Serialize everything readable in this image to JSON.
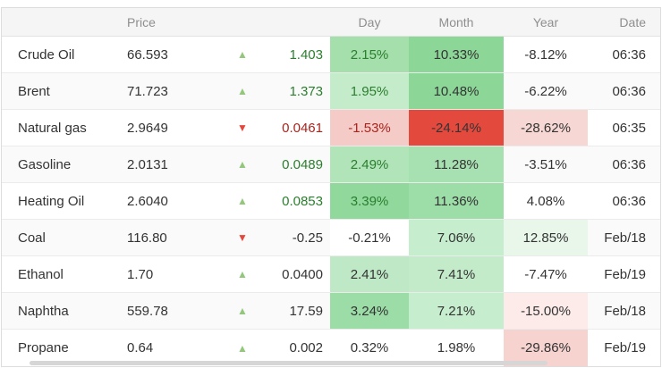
{
  "table": {
    "headers": {
      "price": "Price",
      "day": "Day",
      "month": "Month",
      "year": "Year",
      "date": "Date"
    },
    "rows": [
      {
        "name": "Crude Oil",
        "price": "66.593",
        "direction": "up",
        "change": "1.403",
        "change_style": "green",
        "day": {
          "text": "2.15%",
          "bg": "#a5dfab",
          "style": "green"
        },
        "month": {
          "text": "10.33%",
          "bg": "#8cd798",
          "style": "dark"
        },
        "year": {
          "text": "-8.12%",
          "bg": "",
          "style": "dark"
        },
        "date": "06:36"
      },
      {
        "name": "Brent",
        "price": "71.723",
        "direction": "up",
        "change": "1.373",
        "change_style": "green",
        "day": {
          "text": "1.95%",
          "bg": "#c5ecca",
          "style": "green"
        },
        "month": {
          "text": "10.48%",
          "bg": "#8cd798",
          "style": "dark"
        },
        "year": {
          "text": "-6.22%",
          "bg": "",
          "style": "dark"
        },
        "date": "06:36"
      },
      {
        "name": "Natural gas",
        "price": "2.9649",
        "direction": "down",
        "change": "0.0461",
        "change_style": "red",
        "day": {
          "text": "-1.53%",
          "bg": "#f5cbc8",
          "style": "red"
        },
        "month": {
          "text": "-24.14%",
          "bg": "#e4493e",
          "style": "dark"
        },
        "year": {
          "text": "-28.62%",
          "bg": "#f7d7d3",
          "style": "dark"
        },
        "date": "06:35"
      },
      {
        "name": "Gasoline",
        "price": "2.0131",
        "direction": "up",
        "change": "0.0489",
        "change_style": "green",
        "day": {
          "text": "2.49%",
          "bg": "#b2e4ba",
          "style": "green"
        },
        "month": {
          "text": "11.28%",
          "bg": "#a8e1b1",
          "style": "dark"
        },
        "year": {
          "text": "-3.51%",
          "bg": "",
          "style": "dark"
        },
        "date": "06:36"
      },
      {
        "name": "Heating Oil",
        "price": "2.6040",
        "direction": "up",
        "change": "0.0853",
        "change_style": "green",
        "day": {
          "text": "3.39%",
          "bg": "#90d89c",
          "style": "green"
        },
        "month": {
          "text": "11.36%",
          "bg": "#9cdda8",
          "style": "dark"
        },
        "year": {
          "text": "4.08%",
          "bg": "",
          "style": "dark"
        },
        "date": "06:36"
      },
      {
        "name": "Coal",
        "price": "116.80",
        "direction": "down",
        "change": "-0.25",
        "change_style": "dark",
        "day": {
          "text": "-0.21%",
          "bg": "#ffffff",
          "style": "dark"
        },
        "month": {
          "text": "7.06%",
          "bg": "#c6edcd",
          "style": "dark"
        },
        "year": {
          "text": "12.85%",
          "bg": "#e9f7eb",
          "style": "dark"
        },
        "date": "Feb/18"
      },
      {
        "name": "Ethanol",
        "price": "1.70",
        "direction": "up",
        "change": "0.0400",
        "change_style": "dark",
        "day": {
          "text": "2.41%",
          "bg": "#bfe9c6",
          "style": "dark"
        },
        "month": {
          "text": "7.41%",
          "bg": "#c3ebca",
          "style": "dark"
        },
        "year": {
          "text": "-7.47%",
          "bg": "",
          "style": "dark"
        },
        "date": "Feb/19"
      },
      {
        "name": "Naphtha",
        "price": "559.78",
        "direction": "up",
        "change": "17.59",
        "change_style": "dark",
        "day": {
          "text": "3.24%",
          "bg": "#9bdca7",
          "style": "dark"
        },
        "month": {
          "text": "7.21%",
          "bg": "#c6edcd",
          "style": "dark"
        },
        "year": {
          "text": "-15.00%",
          "bg": "#fcebe9",
          "style": "dark"
        },
        "date": "Feb/18"
      },
      {
        "name": "Propane",
        "price": "0.64",
        "direction": "up",
        "change": "0.002",
        "change_style": "dark",
        "day": {
          "text": "0.32%",
          "bg": "#ffffff",
          "style": "dark"
        },
        "month": {
          "text": "1.98%",
          "bg": "#ffffff",
          "style": "dark"
        },
        "year": {
          "text": "-29.86%",
          "bg": "#f6d3cf",
          "style": "dark"
        },
        "date": "Feb/19"
      }
    ]
  },
  "icons": {
    "up": "▲",
    "down": "▼"
  },
  "colors": {
    "up_arrow": "#94c77d",
    "down_arrow": "#e2483d",
    "positive_text": "#2b7e2e",
    "negative_text": "#a8251e",
    "strong_gain_bg": "#8cd798",
    "strong_loss_bg": "#e4493e",
    "header_bg": "#f5f5f6",
    "border": "#dddddd"
  }
}
